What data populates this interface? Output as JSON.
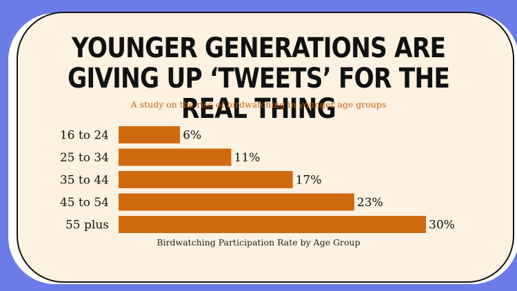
{
  "title": "YOUNGER GENERATIONS ARE GIVING UP ‘TWEETS’ FOR THE REAL THING",
  "subtitle": "A study on the rise of birdwatching in younger age groups",
  "colors": {
    "bar": "#d06a10",
    "background": "#6b7be8",
    "card": "#fdf1e1",
    "accent_text": "#c76410"
  },
  "chart_data": {
    "type": "bar",
    "orientation": "horizontal",
    "categories": [
      "16 to 24",
      "25 to 34",
      "35 to 44",
      "45 to 54",
      "55 plus"
    ],
    "values": [
      6,
      11,
      17,
      23,
      30
    ],
    "value_labels": [
      "6%",
      "11%",
      "17%",
      "23%",
      "30%"
    ],
    "unit": "%",
    "xlabel": "Birdwatching Participation Rate by Age Group",
    "xlim": [
      0,
      30
    ],
    "grid": false
  }
}
